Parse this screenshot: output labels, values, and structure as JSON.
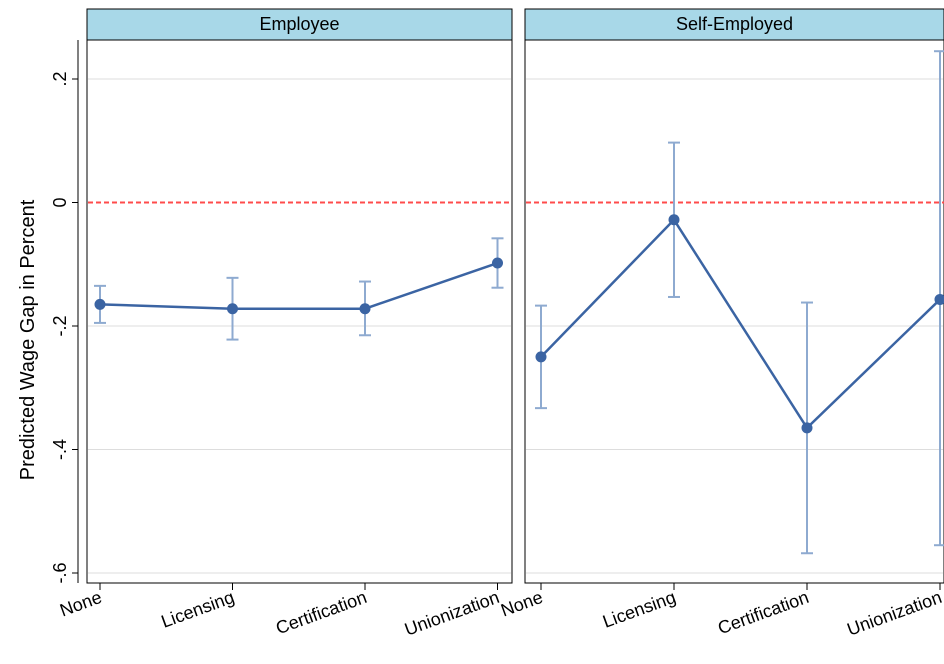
{
  "chart_data": {
    "type": "line",
    "ylabel": "Predicted Wage Gap in Percent",
    "ylim": [
      -0.62,
      0.26
    ],
    "yticks": [
      {
        "value": 0.2,
        "label": ".2"
      },
      {
        "value": 0,
        "label": "0"
      },
      {
        "value": -0.2,
        "label": "-.2"
      },
      {
        "value": -0.4,
        "label": "-.4"
      },
      {
        "value": -0.6,
        "label": "-.6"
      }
    ],
    "reference_line": 0,
    "grid": true,
    "colors": {
      "line": "#3b64a3",
      "ci": "#8eaad0",
      "reference": "#ff4b4b",
      "panel_header": "#a8d8e8",
      "grid": "#dddddd"
    },
    "panels": [
      {
        "title": "Employee",
        "categories": [
          "None",
          "Licensing",
          "Certification",
          "Unionization"
        ],
        "values": [
          -0.165,
          -0.172,
          -0.172,
          -0.098
        ],
        "ci_low": [
          -0.195,
          -0.222,
          -0.215,
          -0.138
        ],
        "ci_high": [
          -0.135,
          -0.122,
          -0.128,
          -0.058
        ]
      },
      {
        "title": "Self-Employed",
        "categories": [
          "None",
          "Licensing",
          "Certification",
          "Unionization"
        ],
        "values": [
          -0.25,
          -0.028,
          -0.365,
          -0.157
        ],
        "ci_low": [
          -0.333,
          -0.153,
          -0.568,
          -0.555
        ],
        "ci_high": [
          -0.167,
          0.097,
          -0.162,
          0.245
        ]
      }
    ]
  }
}
